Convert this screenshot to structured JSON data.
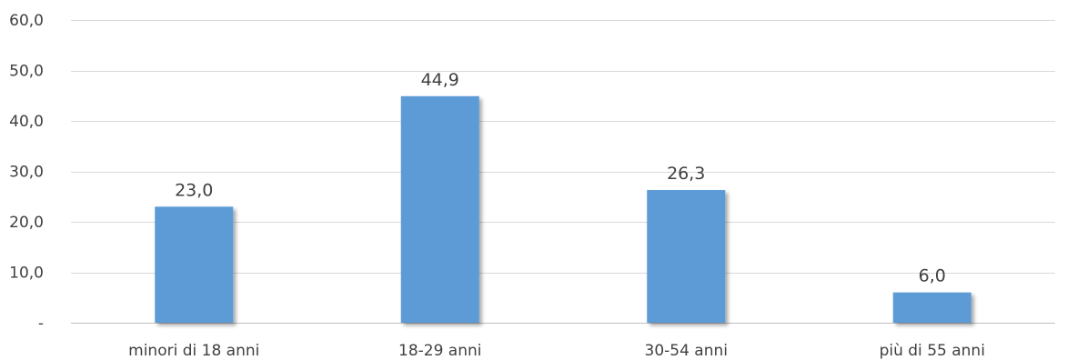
{
  "chart_data": {
    "type": "bar",
    "title": "",
    "xlabel": "",
    "ylabel": "",
    "categories": [
      "minori di 18 anni",
      "18-29 anni",
      "30-54 anni",
      "più di 55 anni"
    ],
    "values": [
      23.0,
      44.9,
      26.3,
      6.0
    ],
    "value_labels": [
      "23,0",
      "44,9",
      "26,3",
      "6,0"
    ],
    "ylim": [
      0,
      60
    ],
    "yticks": [
      0,
      10,
      20,
      30,
      40,
      50,
      60
    ],
    "ytick_labels": [
      "-",
      "10,0",
      "20,0",
      "30,0",
      "40,0",
      "50,0",
      "60,0"
    ],
    "grid": true,
    "legend": "none",
    "colors": {
      "bar": "#5b9bd5",
      "bar_shadow": "#c8c8c8",
      "grid": "#d9d9d9",
      "text": "#404040"
    }
  }
}
